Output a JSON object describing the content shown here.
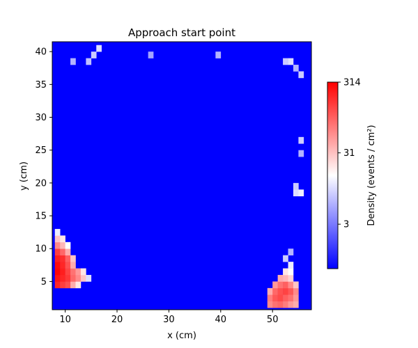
{
  "chart_data": {
    "type": "heatmap",
    "title": "Approach start point",
    "xlabel": "x (cm)",
    "ylabel": "y (cm)",
    "xlim": [
      7.5,
      57.5
    ],
    "ylim": [
      0.7,
      41.5
    ],
    "xticks": [
      10,
      20,
      30,
      40,
      50
    ],
    "yticks": [
      5,
      10,
      15,
      20,
      25,
      30,
      35,
      40
    ],
    "colorbar": {
      "label": "Density (events / cm²)",
      "scale": "log",
      "range": [
        0.7,
        314
      ],
      "ticks": [
        3,
        31,
        314
      ],
      "colors": [
        "#0000ff",
        "#ffffff",
        "#ff0000"
      ]
    },
    "background_value": 0.7,
    "cell_size": 1,
    "cells": [
      {
        "x": 8,
        "y": 4,
        "v": 200
      },
      {
        "x": 9,
        "y": 4,
        "v": 150
      },
      {
        "x": 10,
        "y": 4,
        "v": 120
      },
      {
        "x": 11,
        "y": 4,
        "v": 40
      },
      {
        "x": 12,
        "y": 4,
        "v": 20
      },
      {
        "x": 8,
        "y": 5,
        "v": 250
      },
      {
        "x": 9,
        "y": 5,
        "v": 200
      },
      {
        "x": 10,
        "y": 5,
        "v": 160
      },
      {
        "x": 11,
        "y": 5,
        "v": 90
      },
      {
        "x": 12,
        "y": 5,
        "v": 60
      },
      {
        "x": 13,
        "y": 5,
        "v": 30
      },
      {
        "x": 14,
        "y": 5,
        "v": 10
      },
      {
        "x": 8,
        "y": 6,
        "v": 300
      },
      {
        "x": 9,
        "y": 6,
        "v": 220
      },
      {
        "x": 10,
        "y": 6,
        "v": 140
      },
      {
        "x": 11,
        "y": 6,
        "v": 80
      },
      {
        "x": 12,
        "y": 6,
        "v": 50
      },
      {
        "x": 13,
        "y": 6,
        "v": 20
      },
      {
        "x": 8,
        "y": 7,
        "v": 280
      },
      {
        "x": 9,
        "y": 7,
        "v": 200
      },
      {
        "x": 10,
        "y": 7,
        "v": 120
      },
      {
        "x": 11,
        "y": 7,
        "v": 40
      },
      {
        "x": 8,
        "y": 8,
        "v": 220
      },
      {
        "x": 9,
        "y": 8,
        "v": 180
      },
      {
        "x": 10,
        "y": 8,
        "v": 100
      },
      {
        "x": 11,
        "y": 8,
        "v": 30
      },
      {
        "x": 8,
        "y": 9,
        "v": 150
      },
      {
        "x": 9,
        "y": 9,
        "v": 90
      },
      {
        "x": 10,
        "y": 9,
        "v": 40
      },
      {
        "x": 8,
        "y": 10,
        "v": 60
      },
      {
        "x": 9,
        "y": 10,
        "v": 35
      },
      {
        "x": 10,
        "y": 10,
        "v": 15
      },
      {
        "x": 8,
        "y": 11,
        "v": 30
      },
      {
        "x": 9,
        "y": 11,
        "v": 20
      },
      {
        "x": 8,
        "y": 12,
        "v": 12
      },
      {
        "x": 49,
        "y": 1,
        "v": 60
      },
      {
        "x": 50,
        "y": 1,
        "v": 80
      },
      {
        "x": 51,
        "y": 1,
        "v": 90
      },
      {
        "x": 52,
        "y": 1,
        "v": 70
      },
      {
        "x": 53,
        "y": 1,
        "v": 50
      },
      {
        "x": 54,
        "y": 1,
        "v": 40
      },
      {
        "x": 49,
        "y": 2,
        "v": 70
      },
      {
        "x": 50,
        "y": 2,
        "v": 110
      },
      {
        "x": 51,
        "y": 2,
        "v": 130
      },
      {
        "x": 52,
        "y": 2,
        "v": 100
      },
      {
        "x": 53,
        "y": 2,
        "v": 80
      },
      {
        "x": 54,
        "y": 2,
        "v": 50
      },
      {
        "x": 49,
        "y": 3,
        "v": 40
      },
      {
        "x": 50,
        "y": 3,
        "v": 90
      },
      {
        "x": 51,
        "y": 3,
        "v": 120
      },
      {
        "x": 52,
        "y": 3,
        "v": 140
      },
      {
        "x": 53,
        "y": 3,
        "v": 110
      },
      {
        "x": 54,
        "y": 3,
        "v": 60
      },
      {
        "x": 50,
        "y": 4,
        "v": 50
      },
      {
        "x": 51,
        "y": 4,
        "v": 80
      },
      {
        "x": 52,
        "y": 4,
        "v": 100
      },
      {
        "x": 53,
        "y": 4,
        "v": 60
      },
      {
        "x": 54,
        "y": 4,
        "v": 30
      },
      {
        "x": 51,
        "y": 5,
        "v": 40
      },
      {
        "x": 52,
        "y": 5,
        "v": 35
      },
      {
        "x": 53,
        "y": 5,
        "v": 25
      },
      {
        "x": 52,
        "y": 6,
        "v": 20
      },
      {
        "x": 53,
        "y": 6,
        "v": 15
      },
      {
        "x": 53,
        "y": 7,
        "v": 12
      },
      {
        "x": 52,
        "y": 8,
        "v": 8
      },
      {
        "x": 53,
        "y": 9,
        "v": 6
      },
      {
        "x": 54,
        "y": 18,
        "v": 10
      },
      {
        "x": 55,
        "y": 18,
        "v": 12
      },
      {
        "x": 54,
        "y": 19,
        "v": 8
      },
      {
        "x": 55,
        "y": 24,
        "v": 6
      },
      {
        "x": 55,
        "y": 26,
        "v": 8
      },
      {
        "x": 55,
        "y": 36,
        "v": 8
      },
      {
        "x": 54,
        "y": 37,
        "v": 6
      },
      {
        "x": 53,
        "y": 38,
        "v": 10
      },
      {
        "x": 52,
        "y": 38,
        "v": 8
      },
      {
        "x": 15,
        "y": 39,
        "v": 8
      },
      {
        "x": 16,
        "y": 40,
        "v": 10
      },
      {
        "x": 11,
        "y": 38,
        "v": 6
      },
      {
        "x": 14,
        "y": 38,
        "v": 7
      },
      {
        "x": 39,
        "y": 39,
        "v": 6
      },
      {
        "x": 26,
        "y": 39,
        "v": 5
      }
    ]
  }
}
